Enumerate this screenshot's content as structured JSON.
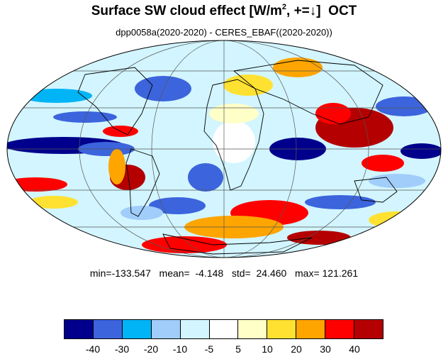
{
  "title": {
    "main": "Surface SW cloud effect [W/m",
    "sup": "2",
    "tail": ", +=↓]  OCT"
  },
  "subtitle": "dpp0058a(2020-2020) - CERES_EBAF((2020-2020))",
  "stats": {
    "text": "min=-133.547   mean=  -4.148   std=  24.460   max= 121.261",
    "min": -133.547,
    "mean": -4.148,
    "std": 24.46,
    "max": 121.261
  },
  "colorbar": {
    "colors": [
      "#00008c",
      "#3c64dc",
      "#00b4f5",
      "#a0cdfa",
      "#d2f5ff",
      "#ffffff",
      "#ffffc8",
      "#ffe132",
      "#ffa500",
      "#ff0000",
      "#b40000"
    ],
    "labels": [
      "-40",
      "-30",
      "-20",
      "-10",
      "-5",
      "5",
      "10",
      "20",
      "30",
      "40"
    ]
  },
  "map": {
    "projection": "mollweide",
    "field": "surface SW cloud effect difference",
    "ocean_background": "#d2f5ff",
    "coastline_color": "#000000",
    "gridline_color": "#555555"
  }
}
